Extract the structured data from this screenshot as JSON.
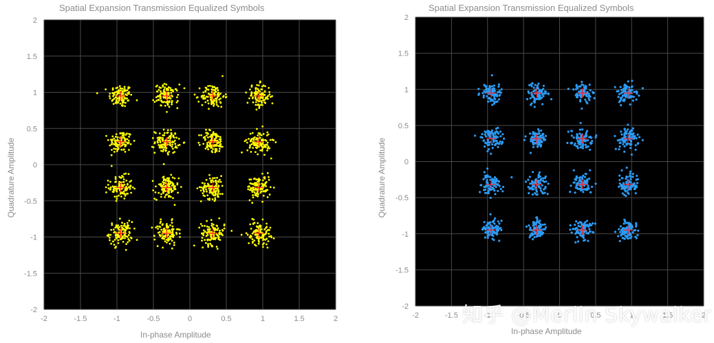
{
  "chart_data": [
    {
      "type": "scatter",
      "title": "Spatial Expansion Transmission Equalized Symbols",
      "xlabel": "In-phase Amplitude",
      "ylabel": "Quadrature Amplitude",
      "xlim": [
        -2,
        2
      ],
      "ylim": [
        -2,
        2
      ],
      "xticks": [
        -2,
        -1.5,
        -1,
        -0.5,
        0,
        0.5,
        1,
        1.5,
        2
      ],
      "yticks": [
        -2,
        -1.5,
        -1,
        -0.5,
        0,
        0.5,
        1,
        1.5,
        2
      ],
      "xtick_labels": [
        "-2",
        "-1.5",
        "-1",
        "-0.5",
        "0",
        "0.5",
        "1",
        "1.5",
        "2"
      ],
      "ytick_labels": [
        "-2",
        "-1.5",
        "-1",
        "-0.5",
        "0",
        "0.5",
        "1",
        "1.5",
        "2"
      ],
      "grid": true,
      "background_color": "#000000",
      "point_color": "#ffff00",
      "reference_color": "#ff2020",
      "reference_points": {
        "x": [
          -0.9487,
          -0.3162,
          0.3162,
          0.9487
        ],
        "y": [
          0.9487,
          0.3162,
          -0.3162,
          -0.9487
        ]
      },
      "cluster_spread": 0.08
    },
    {
      "type": "scatter",
      "title": "Spatial Expansion Transmission Equalized Symbols",
      "xlabel": "In-phase Amplitude",
      "ylabel": "Quadrature Amplitude",
      "xlim": [
        -2,
        2
      ],
      "ylim": [
        -2,
        2
      ],
      "xticks": [
        -2,
        -1.5,
        -1,
        -0.5,
        0,
        0.5,
        1,
        1.5,
        2
      ],
      "yticks": [
        -2,
        -1.5,
        -1,
        -0.5,
        0,
        0.5,
        1,
        1.5,
        2
      ],
      "xtick_labels": [
        "-2",
        "-1.5",
        "-1",
        "-0.5",
        "0",
        "0.5",
        "1",
        "1.5",
        "2"
      ],
      "ytick_labels": [
        "-2",
        "-1.5",
        "-1",
        "-0.5",
        "0",
        "0.5",
        "1",
        "1.5",
        "2"
      ],
      "grid": true,
      "background_color": "#000000",
      "point_color": "#2b9bf4",
      "reference_color": "#ff2020",
      "reference_points": {
        "x": [
          -0.9487,
          -0.3162,
          0.3162,
          0.9487
        ],
        "y": [
          0.9487,
          0.3162,
          -0.3162,
          -0.9487
        ]
      },
      "cluster_spread": 0.07
    }
  ],
  "watermark": "知乎 @Merlin Skywalker"
}
